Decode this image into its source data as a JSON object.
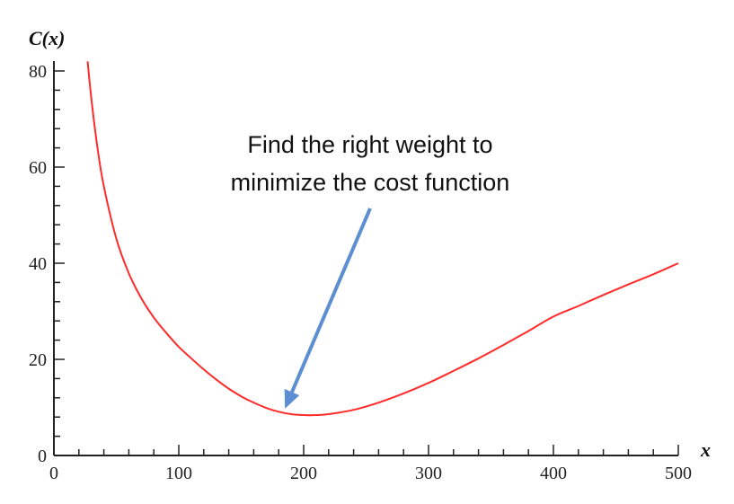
{
  "chart_data": {
    "type": "line",
    "title": "",
    "xlabel": "x",
    "ylabel": "C(x)",
    "xlim": [
      0,
      500
    ],
    "ylim": [
      0,
      80
    ],
    "grid": false,
    "legend": "none",
    "x_ticks": [
      "0",
      "100",
      "200",
      "300",
      "400",
      "500"
    ],
    "y_ticks": [
      "0",
      "20",
      "40",
      "60",
      "80"
    ],
    "x_tick_values": [
      0,
      100,
      200,
      300,
      400,
      500
    ],
    "y_tick_values": [
      0,
      20,
      40,
      60,
      80
    ],
    "series": [
      {
        "color": "#ff2a2a",
        "x": [
          27,
          30,
          35,
          40,
          50,
          60,
          70,
          80,
          90,
          100,
          110,
          120,
          130,
          140,
          150,
          160,
          170,
          180,
          190,
          200,
          210,
          220,
          240,
          260,
          280,
          300,
          320,
          340,
          360,
          380,
          400,
          420,
          440,
          460,
          480,
          500
        ],
        "y": [
          82.0,
          74.2,
          63.8,
          56.0,
          45.1,
          37.9,
          32.7,
          28.7,
          25.5,
          22.6,
          20.2,
          17.9,
          15.8,
          13.9,
          12.3,
          11.0,
          9.9,
          9.1,
          8.6,
          8.4,
          8.4,
          8.6,
          9.5,
          11.0,
          12.9,
          15.1,
          17.6,
          20.2,
          23.0,
          25.9,
          28.9,
          31.1,
          33.4,
          35.6,
          37.7,
          40.0
        ]
      }
    ],
    "annotations": [
      {
        "text_lines": [
          "Find the right weight to",
          "minimize the cost function"
        ],
        "arrow_color": "#5b8fd1",
        "points_to": {
          "x": 185,
          "y": 9
        }
      }
    ]
  }
}
